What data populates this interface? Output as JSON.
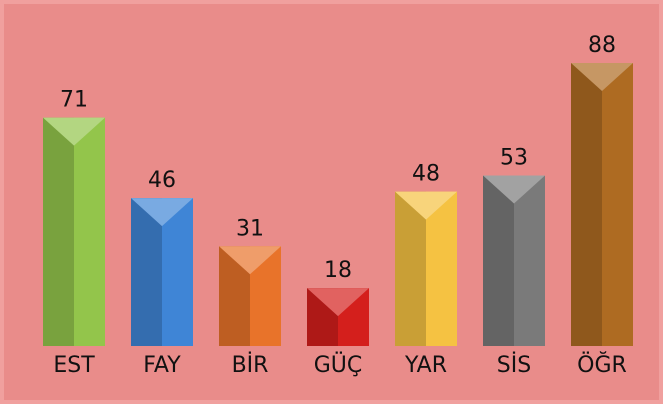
{
  "chart_data": {
    "type": "bar",
    "categories": [
      "EST",
      "FAY",
      "BİR",
      "GÜÇ",
      "YAR",
      "SİS",
      "ÖĞR"
    ],
    "values": [
      71,
      46,
      31,
      18,
      48,
      53,
      88
    ],
    "colors": [
      "#93c54b",
      "#3f85d6",
      "#e8732a",
      "#d41f1c",
      "#f5c242",
      "#7a7a7a",
      "#ae6b22"
    ]
  }
}
